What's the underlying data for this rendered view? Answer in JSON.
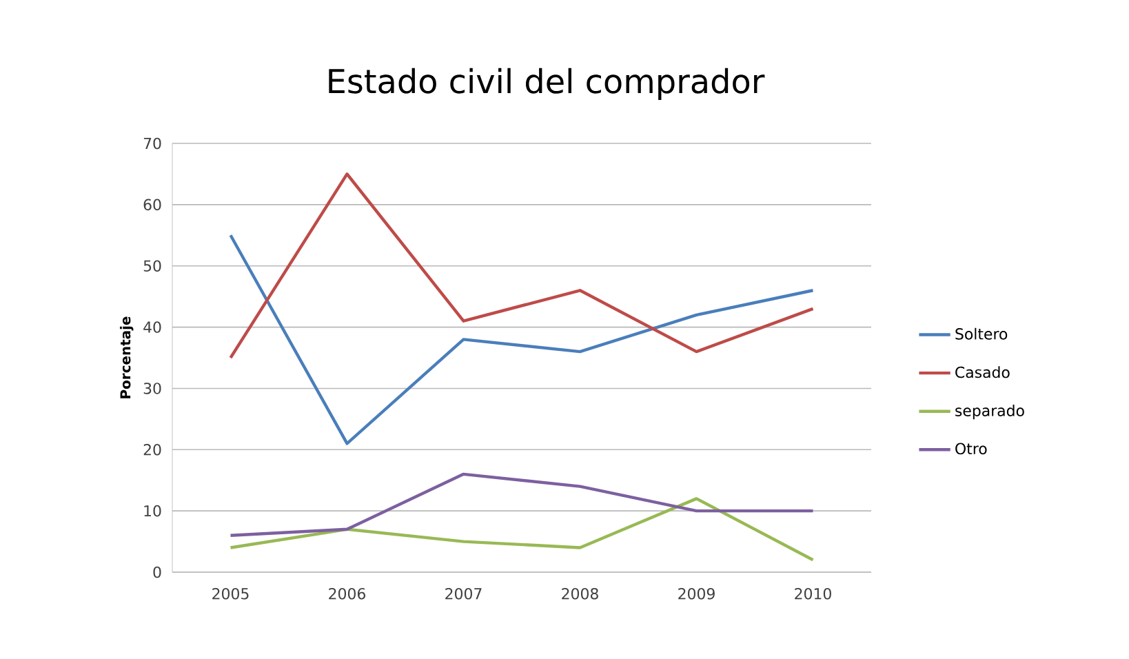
{
  "chart_data": {
    "type": "line",
    "title": "Estado civil del comprador",
    "ylabel": "Porcentaje",
    "categories": [
      "2005",
      "2006",
      "2007",
      "2008",
      "2009",
      "2010"
    ],
    "series": [
      {
        "name": "Soltero",
        "color": "#4a7ebb",
        "values": [
          55,
          21,
          38,
          36,
          42,
          46
        ]
      },
      {
        "name": "Casado",
        "color": "#be4b48",
        "values": [
          35,
          65,
          41,
          46,
          36,
          43
        ]
      },
      {
        "name": "separado",
        "color": "#98b954",
        "values": [
          4,
          7,
          5,
          4,
          12,
          2
        ]
      },
      {
        "name": "Otro",
        "color": "#7d60a0",
        "values": [
          6,
          7,
          16,
          14,
          10,
          10
        ]
      }
    ],
    "ylim": [
      0,
      70
    ],
    "yticks": [
      0,
      10,
      20,
      30,
      40,
      50,
      60,
      70
    ],
    "grid": "y",
    "legend": "right",
    "marker": "none",
    "line_style": "solid"
  }
}
